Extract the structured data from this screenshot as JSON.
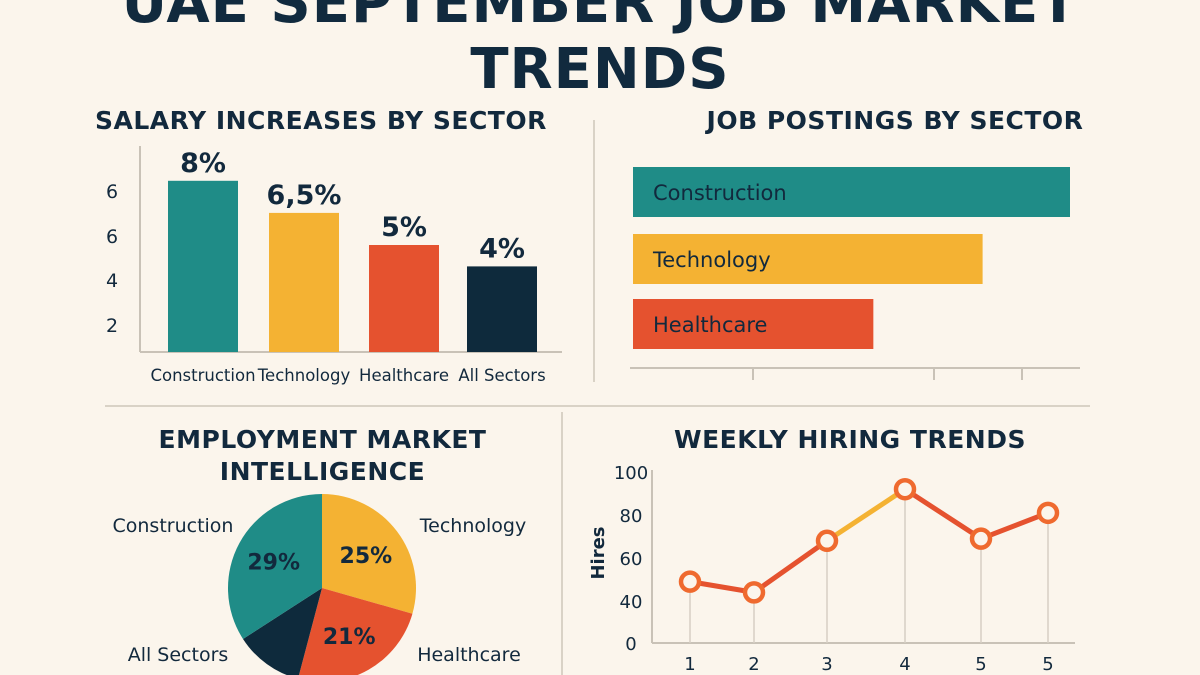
{
  "title_line1": "UAE SEPTEMBER JOB MARKET",
  "title_line2": "TRENDS",
  "colors": {
    "teal": "#1f8c87",
    "yellow": "#f4b233",
    "orange": "#e5522f",
    "navy": "#0e2a3c",
    "background": "#fbf5ec"
  },
  "chart_data": [
    {
      "type": "bar",
      "title": "SALARY INCREASES BY SECTOR",
      "categories": [
        "Construction",
        "Technology",
        "Healthcare",
        "All Sectors"
      ],
      "values": [
        8,
        6.5,
        5,
        4
      ],
      "data_labels": [
        "8%",
        "6,5%",
        "5%",
        "4%"
      ],
      "y_tick_labels": [
        "2",
        "4",
        "6",
        "6"
      ],
      "bar_colors": [
        "#1f8c87",
        "#f4b233",
        "#e5522f",
        "#0e2a3c"
      ],
      "ylim": [
        0,
        10
      ]
    },
    {
      "type": "bar",
      "orientation": "horizontal",
      "title": "JOB POSTINGS BY SECTOR",
      "categories": [
        "Construction",
        "Technology",
        "Healthcare"
      ],
      "values": [
        100,
        80,
        55
      ],
      "bar_colors": [
        "#1f8c87",
        "#f4b233",
        "#e5522f"
      ],
      "xlim": [
        0,
        100
      ]
    },
    {
      "type": "pie",
      "title": "EMPLOYMENT  MARKET INTELLIGENCE",
      "title_lines": [
        "EMPLOYMENT  MARKET",
        "INTELLIGENCE"
      ],
      "slices": [
        {
          "label": "Construction",
          "value": 29,
          "display": "29%",
          "color": "#1f8c87"
        },
        {
          "label": "Technology",
          "value": 25,
          "display": "25%",
          "color": "#f4b233"
        },
        {
          "label": "Healthcare",
          "value": 21,
          "display": "21%",
          "color": "#e5522f"
        },
        {
          "label": "All Sectors",
          "value": 10,
          "display": "",
          "color": "#0e2a3c"
        }
      ]
    },
    {
      "type": "line",
      "title": "WEEKLY HIRING TRENDS",
      "ylabel": "Hires",
      "x_tick_labels": [
        "1",
        "2",
        "3",
        "4",
        "5",
        "5"
      ],
      "values": [
        49,
        44,
        68,
        92,
        69,
        81
      ],
      "y_ticks": [
        0,
        40,
        60,
        80,
        100
      ],
      "ylim": [
        0,
        100
      ],
      "color": "#e5522f",
      "segment_colors": [
        "#e5522f",
        "#e5522f",
        "#f4b233",
        "#e5522f",
        "#e5522f"
      ]
    }
  ]
}
